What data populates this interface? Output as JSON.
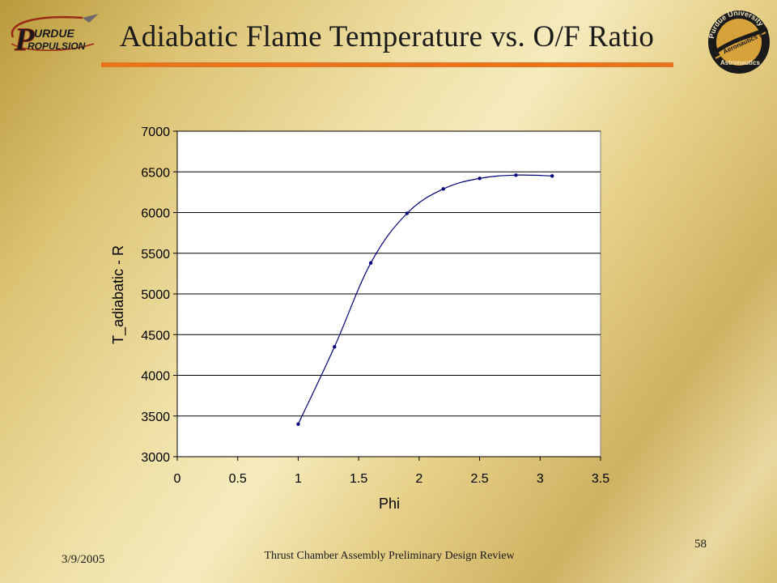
{
  "slide": {
    "title": "Adiabatic Flame Temperature vs. O/F Ratio",
    "date": "3/9/2005",
    "footer": "Thrust Chamber Assembly Preliminary Design Review",
    "page_number": "58",
    "accent_color": "#e8741e"
  },
  "logos": {
    "left": {
      "icon": "purdue-propulsion-logo",
      "text_line1": "URDUE",
      "text_line2": "ROPULSION",
      "letter_p": "P"
    },
    "right": {
      "icon": "purdue-aeronautics-astronautics-seal",
      "text_top": "Purdue University",
      "text_mid": "Aeronautics &",
      "text_bottom": "Astronautics"
    }
  },
  "chart_data": {
    "type": "line",
    "xlabel": "Phi",
    "ylabel": "T_adiabatic - R",
    "xlim": [
      0,
      3.5
    ],
    "ylim": [
      3000,
      7000
    ],
    "x_ticks": [
      "0",
      "0.5",
      "1",
      "1.5",
      "2",
      "2.5",
      "3",
      "3.5"
    ],
    "y_ticks": [
      "3000",
      "3500",
      "4000",
      "4500",
      "5000",
      "5500",
      "6000",
      "6500",
      "7000"
    ],
    "grid": "horizontal",
    "legend": "none",
    "series": [
      {
        "x": [
          1.0,
          1.3,
          1.6,
          1.9,
          2.2,
          2.5,
          2.8,
          3.1
        ],
        "y": [
          3400,
          4350,
          5380,
          5990,
          6290,
          6420,
          6460,
          6450
        ],
        "color": "#00007a",
        "smooth": true
      }
    ]
  }
}
